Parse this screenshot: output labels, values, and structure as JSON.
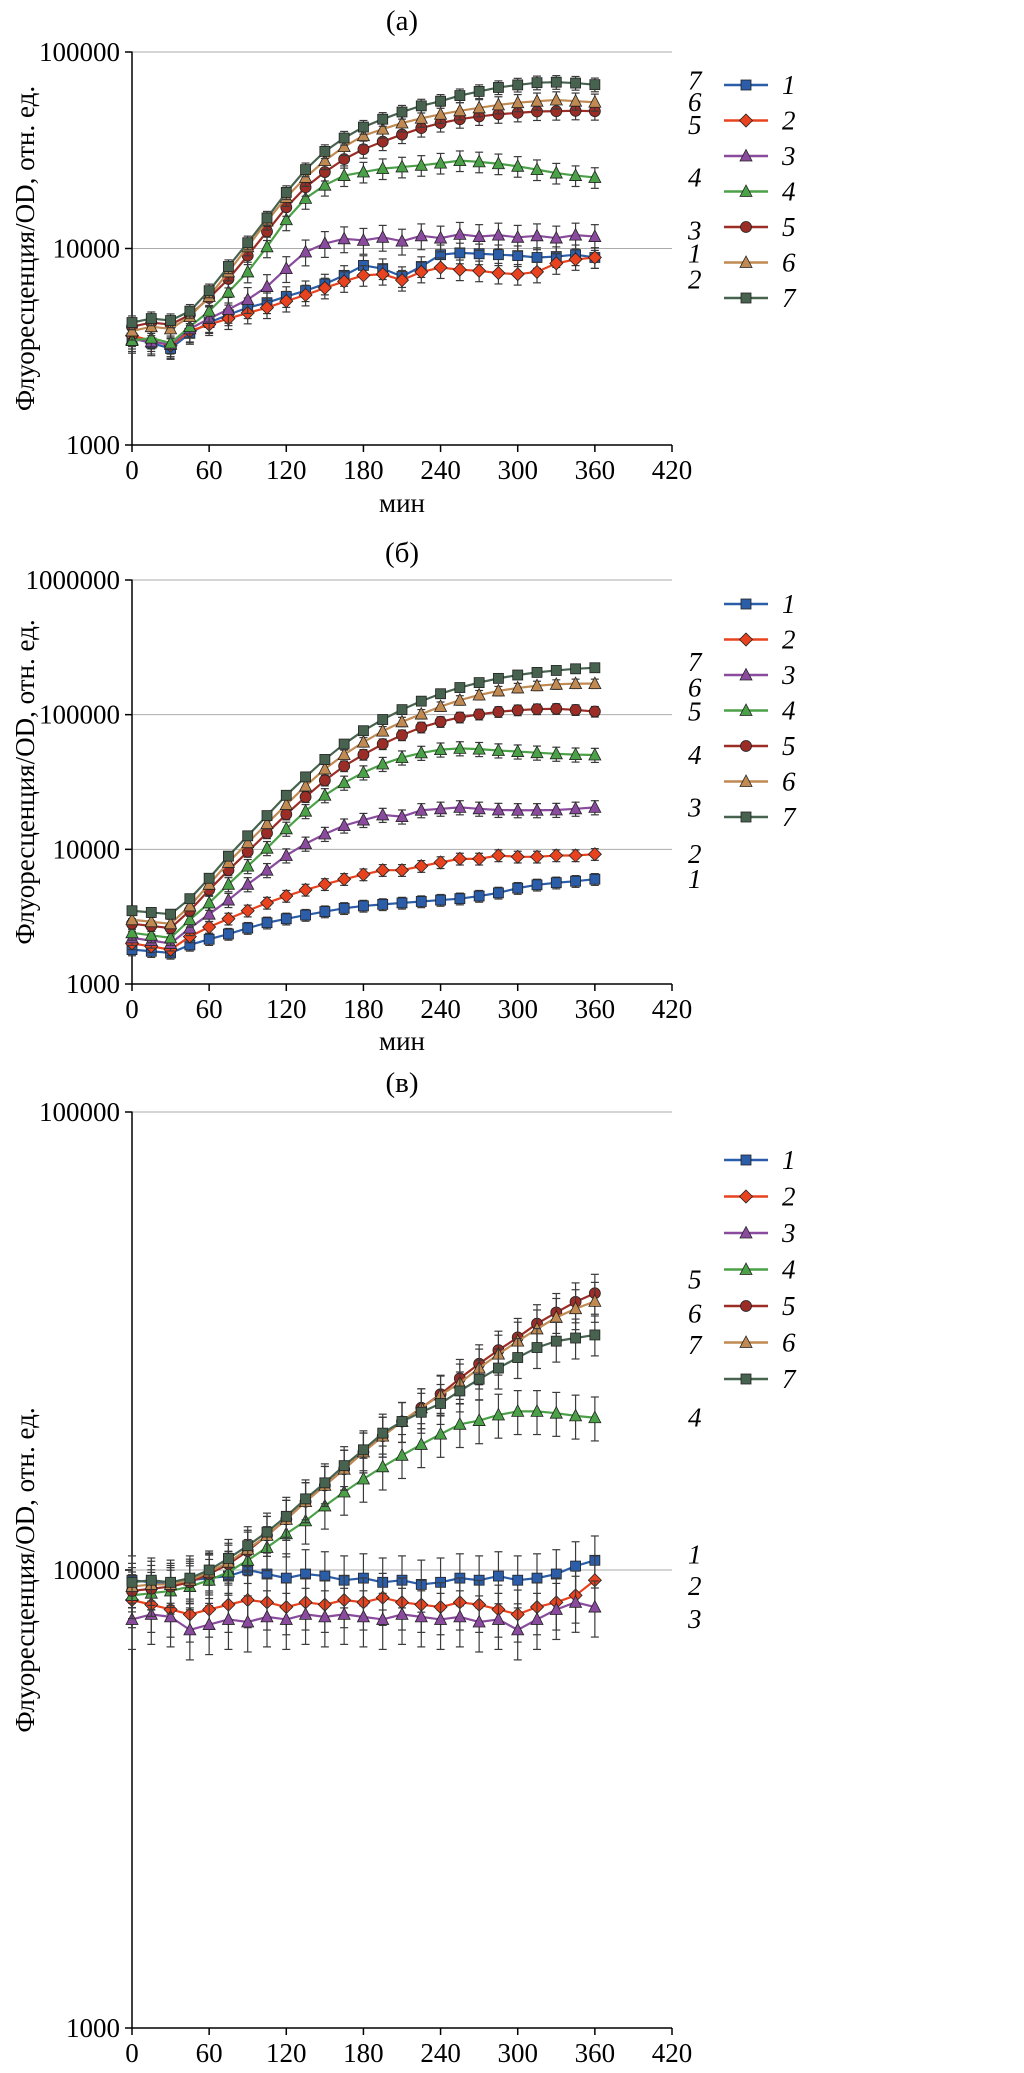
{
  "page": {
    "background": "#ffffff"
  },
  "chart_data": [
    {
      "id": "a",
      "type": "line",
      "title": "(а)",
      "ylabel": "Флуоресценция/OD, отн. ед.",
      "xlabel": "мин",
      "xlim": [
        0,
        420
      ],
      "x_ticks": [
        0,
        60,
        120,
        180,
        240,
        300,
        360,
        420
      ],
      "ylog": true,
      "ylim": [
        1000,
        100000
      ],
      "y_ticks": [
        1000,
        10000,
        100000
      ],
      "y_tick_labels": [
        "1000",
        "10000",
        "100000"
      ],
      "grid": "horizontal-decades",
      "legend_position": "right",
      "x": [
        0,
        15,
        30,
        45,
        60,
        75,
        90,
        105,
        120,
        135,
        150,
        165,
        180,
        195,
        210,
        225,
        240,
        255,
        270,
        285,
        300,
        315,
        330,
        345,
        360
      ],
      "series": [
        {
          "name": "1",
          "color": "#2b5da8",
          "marker": "square",
          "err": 0.12,
          "label_dy": -4,
          "values": [
            3500,
            3300,
            3100,
            3700,
            4200,
            4600,
            5000,
            5300,
            5700,
            6100,
            6600,
            7300,
            8200,
            7900,
            7200,
            8100,
            9300,
            9500,
            9400,
            9300,
            9200,
            9000,
            9100,
            9300,
            9000
          ]
        },
        {
          "name": "2",
          "color": "#e8421e",
          "marker": "diamond",
          "err": 0.12,
          "label_dy": 22,
          "values": [
            3600,
            3400,
            3200,
            3800,
            4100,
            4400,
            4700,
            5000,
            5400,
            5800,
            6300,
            6800,
            7300,
            7400,
            6900,
            7600,
            8000,
            7800,
            7700,
            7500,
            7400,
            7600,
            8400,
            8800,
            9000
          ]
        },
        {
          "name": "3",
          "color": "#8a4b9e",
          "marker": "triangle",
          "err": 0.15,
          "label_dy": -6,
          "values": [
            3450,
            3350,
            3250,
            3900,
            4400,
            4900,
            5500,
            6400,
            7900,
            9600,
            10600,
            11200,
            11000,
            11400,
            10900,
            11600,
            11300,
            11800,
            11500,
            11700,
            11400,
            11600,
            11300,
            11700,
            11500
          ]
        },
        {
          "name": "4",
          "color": "#4ba147",
          "marker": "triangle",
          "err": 0.12,
          "label_dy": 0,
          "values": [
            3400,
            3500,
            3300,
            4000,
            4800,
            6000,
            7600,
            10200,
            14000,
            18000,
            21000,
            23500,
            24500,
            25500,
            26000,
            26500,
            27200,
            28000,
            27600,
            27000,
            26200,
            25200,
            24200,
            23500,
            23000
          ]
        },
        {
          "name": "5",
          "color": "#9b2d26",
          "marker": "circle",
          "err": 0.1,
          "label_dy": 14,
          "values": [
            4000,
            4200,
            4100,
            4600,
            5600,
            7000,
            9200,
            12200,
            16200,
            20500,
            24500,
            28500,
            32000,
            35000,
            38000,
            41000,
            43500,
            45500,
            47000,
            48200,
            49000,
            49800,
            50000,
            50200,
            50000
          ]
        },
        {
          "name": "6",
          "color": "#c08a52",
          "marker": "triangle",
          "err": 0.1,
          "label_dy": 0,
          "values": [
            3800,
            4000,
            3900,
            4500,
            5700,
            7600,
            10200,
            13800,
            18200,
            23000,
            28000,
            33000,
            37500,
            40500,
            43500,
            46000,
            48200,
            50200,
            52000,
            53800,
            55200,
            56200,
            57000,
            56200,
            55500
          ]
        },
        {
          "name": "7",
          "color": "#47634f",
          "marker": "square",
          "err": 0.08,
          "label_dy": -4,
          "values": [
            4200,
            4400,
            4300,
            4800,
            6100,
            8100,
            10700,
            14300,
            19300,
            25200,
            31200,
            36500,
            41500,
            45500,
            49500,
            53200,
            56200,
            60000,
            63000,
            66000,
            68000,
            69800,
            70200,
            69500,
            68200
          ]
        }
      ],
      "legend": [
        "1",
        "2",
        "3",
        "4",
        "5",
        "6",
        "7"
      ]
    },
    {
      "id": "b",
      "type": "line",
      "title": "(б)",
      "ylabel": "Флуоресценция/OD, отн. ед.",
      "xlabel": "мин",
      "xlim": [
        0,
        420
      ],
      "x_ticks": [
        0,
        60,
        120,
        180,
        240,
        300,
        360,
        420
      ],
      "ylog": true,
      "ylim": [
        1000,
        1000000
      ],
      "y_ticks": [
        1000,
        10000,
        100000,
        1000000
      ],
      "y_tick_labels": [
        "1000",
        "10000",
        "100000",
        "1000000"
      ],
      "grid": "horizontal-decades",
      "legend_position": "right",
      "x": [
        0,
        15,
        30,
        45,
        60,
        75,
        90,
        105,
        120,
        135,
        150,
        165,
        180,
        195,
        210,
        225,
        240,
        255,
        270,
        285,
        300,
        315,
        330,
        345,
        360
      ],
      "series": [
        {
          "name": "1",
          "color": "#2b5da8",
          "marker": "square",
          "err": 0.1,
          "label_dy": 0,
          "values": [
            1800,
            1750,
            1700,
            1950,
            2150,
            2350,
            2600,
            2850,
            3050,
            3250,
            3450,
            3650,
            3800,
            3900,
            4000,
            4100,
            4200,
            4300,
            4500,
            4750,
            5150,
            5450,
            5650,
            5800,
            6000
          ]
        },
        {
          "name": "2",
          "color": "#e8421e",
          "marker": "diamond",
          "err": 0.1,
          "label_dy": 0,
          "values": [
            2000,
            1900,
            1800,
            2250,
            2650,
            3050,
            3500,
            4000,
            4500,
            5000,
            5500,
            6000,
            6500,
            7000,
            7000,
            7500,
            8000,
            8500,
            8500,
            9000,
            8800,
            8800,
            9000,
            9000,
            9200
          ]
        },
        {
          "name": "3",
          "color": "#8a4b9e",
          "marker": "triangle",
          "err": 0.12,
          "label_dy": 0,
          "values": [
            2200,
            2100,
            2000,
            2600,
            3300,
            4200,
            5500,
            7000,
            9000,
            11000,
            13000,
            15000,
            16500,
            18000,
            17500,
            19500,
            20000,
            20500,
            20000,
            19600,
            19500,
            19500,
            19600,
            20000,
            20500
          ]
        },
        {
          "name": "4",
          "color": "#4ba147",
          "marker": "triangle",
          "err": 0.12,
          "label_dy": 0,
          "values": [
            2400,
            2300,
            2200,
            3000,
            4000,
            5500,
            7500,
            10200,
            14200,
            19200,
            25200,
            31200,
            37200,
            43000,
            48000,
            52000,
            55000,
            56200,
            55500,
            54200,
            53200,
            52200,
            51200,
            50500,
            50200
          ]
        },
        {
          "name": "5",
          "color": "#9b2d26",
          "marker": "circle",
          "err": 0.09,
          "label_dy": 0,
          "values": [
            2800,
            2700,
            2600,
            3500,
            5000,
            7000,
            9600,
            13200,
            18200,
            24500,
            32500,
            41500,
            50500,
            60500,
            70500,
            80500,
            88500,
            95500,
            100500,
            105000,
            108000,
            110000,
            110500,
            108500,
            105500
          ]
        },
        {
          "name": "6",
          "color": "#c08a52",
          "marker": "triangle",
          "err": 0.08,
          "label_dy": 4,
          "values": [
            3000,
            2900,
            2800,
            3800,
            5500,
            8000,
            11200,
            15500,
            21500,
            29500,
            39500,
            50500,
            62500,
            75500,
            88500,
            101000,
            115000,
            128000,
            140000,
            150000,
            158000,
            164000,
            168000,
            170000,
            170000
          ]
        },
        {
          "name": "7",
          "color": "#47634f",
          "marker": "square",
          "err": 0.07,
          "label_dy": -6,
          "values": [
            3500,
            3400,
            3300,
            4300,
            6100,
            8900,
            12600,
            17800,
            25200,
            34500,
            46500,
            60500,
            76000,
            92000,
            109000,
            126000,
            143000,
            159000,
            173000,
            186000,
            197000,
            206000,
            213000,
            219000,
            223000
          ]
        }
      ],
      "legend": [
        "1",
        "2",
        "3",
        "4",
        "5",
        "6",
        "7"
      ]
    },
    {
      "id": "v",
      "type": "line",
      "title": "(в)",
      "ylabel": "Флуоресценция/OD, отн. ед.",
      "xlabel": "",
      "xlim": [
        0,
        420
      ],
      "x_ticks": [
        0,
        60,
        120,
        180,
        240,
        300,
        360,
        420
      ],
      "ylog": true,
      "ylim": [
        1000,
        100000
      ],
      "y_ticks": [
        1000,
        10000,
        100000
      ],
      "y_tick_labels": [
        "1000",
        "10000",
        "100000"
      ],
      "grid": "horizontal-decades",
      "legend_position": "right",
      "x": [
        0,
        15,
        30,
        45,
        60,
        75,
        90,
        105,
        120,
        135,
        150,
        165,
        180,
        195,
        210,
        225,
        240,
        255,
        270,
        285,
        300,
        315,
        330,
        345,
        360
      ],
      "series": [
        {
          "name": "1",
          "color": "#2b5da8",
          "marker": "square",
          "err": 0.13,
          "label_dy": -6,
          "values": [
            9500,
            9400,
            9300,
            9500,
            9600,
            9700,
            10000,
            9800,
            9600,
            9800,
            9700,
            9500,
            9600,
            9400,
            9500,
            9300,
            9400,
            9600,
            9500,
            9700,
            9500,
            9600,
            9800,
            10200,
            10500
          ]
        },
        {
          "name": "2",
          "color": "#e8421e",
          "marker": "diamond",
          "err": 0.13,
          "label_dy": 6,
          "values": [
            8600,
            8400,
            8200,
            8000,
            8200,
            8400,
            8600,
            8500,
            8300,
            8500,
            8400,
            8600,
            8500,
            8700,
            8500,
            8400,
            8300,
            8500,
            8400,
            8200,
            8000,
            8300,
            8500,
            8800,
            9500
          ]
        },
        {
          "name": "3",
          "color": "#8a4b9e",
          "marker": "triangle",
          "err": 0.14,
          "label_dy": 12,
          "values": [
            7800,
            8000,
            7900,
            7400,
            7600,
            7800,
            7700,
            7900,
            7800,
            8000,
            7900,
            8000,
            7900,
            7800,
            8000,
            7900,
            7800,
            7900,
            7700,
            7800,
            7400,
            7800,
            8200,
            8500,
            8300
          ]
        },
        {
          "name": "4",
          "color": "#4ba147",
          "marker": "triangle",
          "err": 0.11,
          "label_dy": 0,
          "values": [
            8800,
            8900,
            9000,
            9200,
            9500,
            9900,
            10500,
            11200,
            12000,
            12800,
            13800,
            14800,
            15800,
            16800,
            17800,
            18800,
            19800,
            20800,
            21200,
            21800,
            22200,
            22200,
            22000,
            21700,
            21500
          ]
        },
        {
          "name": "5",
          "color": "#9b2d26",
          "marker": "circle",
          "err": 0.1,
          "label_dy": -14,
          "values": [
            9000,
            9100,
            9200,
            9400,
            9800,
            10300,
            11000,
            11900,
            12900,
            14100,
            15300,
            16600,
            18100,
            19600,
            21100,
            22600,
            24200,
            26200,
            28200,
            30200,
            32200,
            34500,
            36500,
            38500,
            40200
          ]
        },
        {
          "name": "6",
          "color": "#c08a52",
          "marker": "triangle",
          "err": 0.1,
          "label_dy": 12,
          "values": [
            9200,
            9300,
            9300,
            9500,
            9900,
            10400,
            11100,
            11900,
            12900,
            14100,
            15300,
            16600,
            18100,
            19600,
            21100,
            22600,
            24100,
            25600,
            27600,
            29600,
            31600,
            33600,
            35600,
            37200,
            38600
          ]
        },
        {
          "name": "7",
          "color": "#47634f",
          "marker": "square",
          "err": 0.1,
          "label_dy": 10,
          "values": [
            9400,
            9500,
            9400,
            9600,
            10000,
            10600,
            11300,
            12100,
            13100,
            14300,
            15500,
            16900,
            18300,
            19900,
            21100,
            22100,
            23100,
            24600,
            26100,
            27600,
            29100,
            30600,
            31600,
            32100,
            32600
          ]
        }
      ],
      "legend": [
        "1",
        "2",
        "3",
        "4",
        "5",
        "6",
        "7"
      ]
    }
  ]
}
